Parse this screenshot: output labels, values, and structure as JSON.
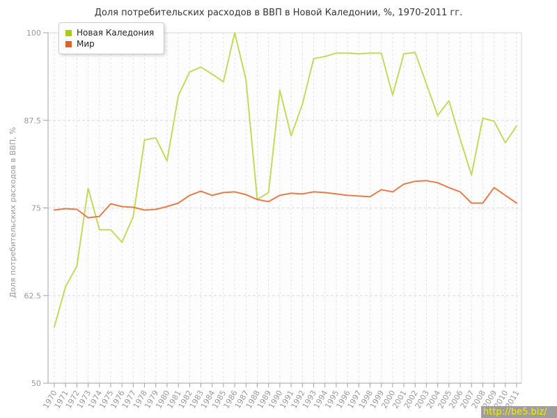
{
  "page": {
    "watermark": "http://be5.biz/"
  },
  "colors": {
    "new_caledonia_line": "#c4d95e",
    "new_caledonia_swatch": "#b0c916",
    "world_line": "#e57c4c",
    "world_swatch": "#dc6228",
    "axis": "#a0a0a0",
    "tick_text": "#999999",
    "grid_vertical": "#e4e4e4",
    "grid_horizontal": "#dadada",
    "plot_border": "#d7d7d7",
    "title_text": "#333333",
    "watermark_bg": "#9e9e9e",
    "watermark_text": "#ffe800"
  },
  "chart_data": {
    "type": "line",
    "title": "Доля потребительских расходов в ВВП в Новой Каледонии, %, 1970-2011 гг.",
    "ylabel": "Доля потребительских расходов в ВВП, %",
    "xlabel": "",
    "ylim": [
      50,
      100
    ],
    "yticks": [
      50,
      62.5,
      75,
      87.5,
      100
    ],
    "ytick_labels": [
      "50",
      "62.5",
      "75",
      "87.5",
      "100"
    ],
    "grid": true,
    "legend_position": "top-left",
    "x": [
      1970,
      1971,
      1972,
      1973,
      1974,
      1975,
      1976,
      1977,
      1978,
      1979,
      1980,
      1981,
      1982,
      1983,
      1984,
      1985,
      1986,
      1987,
      1988,
      1989,
      1990,
      1991,
      1992,
      1993,
      1994,
      1995,
      1996,
      1997,
      1998,
      1999,
      2000,
      2001,
      2002,
      2003,
      2004,
      2005,
      2006,
      2007,
      2008,
      2009,
      2010,
      2011
    ],
    "series": [
      {
        "id": "new-caledonia",
        "name": "Новая Каледония",
        "color": "#b0c916",
        "line_color": "#c4d95e",
        "values": [
          58.0,
          63.8,
          66.7,
          77.8,
          71.9,
          71.9,
          70.1,
          73.8,
          84.7,
          85.0,
          81.7,
          91.0,
          94.4,
          95.1,
          94.1,
          93.0,
          100.0,
          93.3,
          76.2,
          77.2,
          91.8,
          85.3,
          89.8,
          96.3,
          96.6,
          97.1,
          97.1,
          97.0,
          97.1,
          97.1,
          91.1,
          97.0,
          97.2,
          92.7,
          88.2,
          90.3,
          84.8,
          79.7,
          87.8,
          87.4,
          84.3,
          86.7
        ]
      },
      {
        "id": "world",
        "name": "Мир",
        "color": "#dc6228",
        "line_color": "#e57c4c",
        "values": [
          74.7,
          74.9,
          74.8,
          73.6,
          73.8,
          75.6,
          75.2,
          75.1,
          74.7,
          74.8,
          75.2,
          75.7,
          76.8,
          77.4,
          76.8,
          77.2,
          77.3,
          76.9,
          76.2,
          75.9,
          76.8,
          77.1,
          77.0,
          77.3,
          77.2,
          77.0,
          76.8,
          76.7,
          76.6,
          77.6,
          77.3,
          78.4,
          78.8,
          78.9,
          78.6,
          77.9,
          77.3,
          75.7,
          75.7,
          77.9,
          76.8,
          75.7
        ]
      }
    ]
  }
}
